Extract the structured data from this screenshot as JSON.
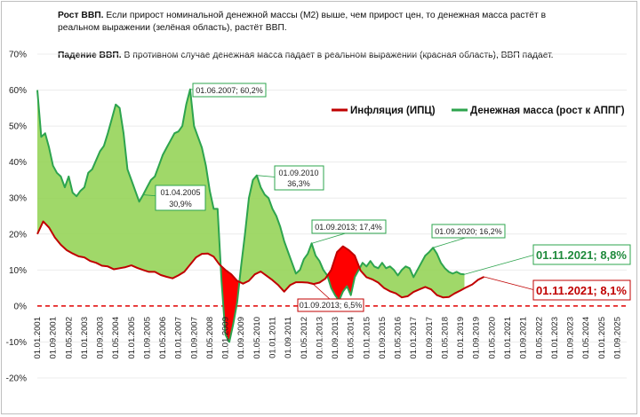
{
  "notes": {
    "growth_title": "Рост ВВП.",
    "growth_text_1": " Если прирост  номинальной денежной массы (М2) выше, чем прирост цен,  то денежная масса растёт в",
    "growth_text_2": "реальном выражении (зелёная область), растёт ВВП.",
    "fall_title": "Падение ВВП.",
    "fall_text": " В противном случае денежная масса падает в реальном выражении (красная область), ВВП падает."
  },
  "chart_data": {
    "type": "area",
    "ylim": [
      -20,
      70
    ],
    "y_ticks": [
      "70%",
      "60%",
      "50%",
      "40%",
      "30%",
      "20%",
      "10%",
      "0%",
      "-10%",
      "-20%"
    ],
    "x_ticks": [
      "01.01.2001",
      "01.09.2001",
      "01.05.2002",
      "01.01.2003",
      "01.09.2003",
      "01.05.2004",
      "01.01.2005",
      "01.09.2005",
      "01.05.2006",
      "01.01.2007",
      "01.09.2007",
      "01.05.2008",
      "01.01.2009",
      "01.09.2009",
      "01.05.2010",
      "01.01.2011",
      "01.09.2011",
      "01.05.2012",
      "01.01.2013",
      "01.09.2013",
      "01.05.2014",
      "01.01.2015",
      "01.09.2015",
      "01.05.2016",
      "01.01.2017",
      "01.09.2017",
      "01.05.2018",
      "01.01.2019",
      "01.09.2019",
      "01.05.2020",
      "01.01.2021",
      "01.09.2021",
      "01.05.2022",
      "01.01.2023",
      "01.09.2023",
      "01.05.2024",
      "01.01.2025",
      "01.09.2025"
    ],
    "series": [
      {
        "name": "Инфляция (ИПЦ)",
        "color": "#c00000",
        "points": [
          [
            0,
            20
          ],
          [
            3,
            23.5
          ],
          [
            6,
            21.8
          ],
          [
            9,
            19
          ],
          [
            12,
            17
          ],
          [
            15,
            15.5
          ],
          [
            18,
            14.6
          ],
          [
            21,
            13.8
          ],
          [
            24,
            13.5
          ],
          [
            27,
            12.5
          ],
          [
            30,
            12
          ],
          [
            33,
            11.2
          ],
          [
            36,
            11
          ],
          [
            39,
            10.2
          ],
          [
            42,
            10.5
          ],
          [
            45,
            10.8
          ],
          [
            48,
            11.3
          ],
          [
            51,
            10.6
          ],
          [
            54,
            10
          ],
          [
            57,
            9.5
          ],
          [
            60,
            9.5
          ],
          [
            63,
            8.6
          ],
          [
            66,
            8.1
          ],
          [
            69,
            7.7
          ],
          [
            72,
            8.5
          ],
          [
            75,
            9.5
          ],
          [
            78,
            11.5
          ],
          [
            81,
            13.5
          ],
          [
            84,
            14.5
          ],
          [
            87,
            14.6
          ],
          [
            90,
            13.7
          ],
          [
            93,
            11.5
          ],
          [
            96,
            10
          ],
          [
            99,
            8.8
          ],
          [
            102,
            7
          ],
          [
            105,
            6.2
          ],
          [
            108,
            7
          ],
          [
            111,
            8.8
          ],
          [
            114,
            9.6
          ],
          [
            117,
            8.4
          ],
          [
            120,
            7.2
          ],
          [
            123,
            5.8
          ],
          [
            126,
            4
          ],
          [
            129,
            5.8
          ],
          [
            132,
            6.6
          ],
          [
            135,
            6.6
          ],
          [
            138,
            6.5
          ],
          [
            141,
            6.1
          ],
          [
            144,
            6.5
          ],
          [
            147,
            7.6
          ],
          [
            150,
            10
          ],
          [
            153,
            15
          ],
          [
            156,
            16.6
          ],
          [
            159,
            15.5
          ],
          [
            162,
            14
          ],
          [
            165,
            9.8
          ],
          [
            168,
            8
          ],
          [
            171,
            7.4
          ],
          [
            174,
            6.5
          ],
          [
            177,
            5
          ],
          [
            180,
            4.1
          ],
          [
            183,
            3.5
          ],
          [
            186,
            2.4
          ],
          [
            189,
            2.7
          ],
          [
            192,
            3.9
          ],
          [
            195,
            4.6
          ],
          [
            198,
            5.3
          ],
          [
            201,
            4.6
          ],
          [
            204,
            3
          ],
          [
            207,
            2.4
          ],
          [
            210,
            2.5
          ],
          [
            213,
            3.5
          ],
          [
            216,
            4.3
          ],
          [
            219,
            5.2
          ],
          [
            222,
            6
          ],
          [
            225,
            7.3
          ],
          [
            228,
            8.1
          ]
        ]
      },
      {
        "name": "Денежная масса (рост к АППГ)",
        "color": "#2da44e",
        "points": [
          [
            0,
            60
          ],
          [
            2,
            47
          ],
          [
            4,
            48
          ],
          [
            6,
            44
          ],
          [
            8,
            39
          ],
          [
            10,
            37
          ],
          [
            12,
            36
          ],
          [
            14,
            33
          ],
          [
            16,
            36
          ],
          [
            18,
            31.5
          ],
          [
            20,
            30.5
          ],
          [
            22,
            32
          ],
          [
            24,
            33
          ],
          [
            26,
            37
          ],
          [
            28,
            38
          ],
          [
            30,
            40.5
          ],
          [
            32,
            43
          ],
          [
            34,
            44.5
          ],
          [
            36,
            48
          ],
          [
            38,
            52
          ],
          [
            40,
            56
          ],
          [
            42,
            55
          ],
          [
            44,
            48
          ],
          [
            46,
            38
          ],
          [
            48,
            35
          ],
          [
            50,
            32
          ],
          [
            52,
            29
          ],
          [
            54,
            30.9
          ],
          [
            56,
            33
          ],
          [
            58,
            35
          ],
          [
            60,
            36
          ],
          [
            62,
            39
          ],
          [
            64,
            42
          ],
          [
            66,
            44
          ],
          [
            68,
            46
          ],
          [
            70,
            48
          ],
          [
            72,
            48.5
          ],
          [
            74,
            50
          ],
          [
            76,
            56
          ],
          [
            78,
            60.2
          ],
          [
            80,
            50
          ],
          [
            82,
            47
          ],
          [
            84,
            44
          ],
          [
            86,
            39
          ],
          [
            88,
            32
          ],
          [
            90,
            27
          ],
          [
            92,
            27
          ],
          [
            94,
            7
          ],
          [
            96,
            -8
          ],
          [
            98,
            -10
          ],
          [
            100,
            -5
          ],
          [
            102,
            1
          ],
          [
            104,
            11
          ],
          [
            106,
            20
          ],
          [
            108,
            30
          ],
          [
            110,
            35
          ],
          [
            112,
            36.3
          ],
          [
            114,
            33
          ],
          [
            116,
            31
          ],
          [
            118,
            30
          ],
          [
            120,
            27
          ],
          [
            122,
            25
          ],
          [
            124,
            22
          ],
          [
            126,
            18
          ],
          [
            128,
            15
          ],
          [
            130,
            12
          ],
          [
            132,
            9
          ],
          [
            134,
            10
          ],
          [
            136,
            13
          ],
          [
            138,
            14.5
          ],
          [
            140,
            17.4
          ],
          [
            142,
            14
          ],
          [
            144,
            12.5
          ],
          [
            146,
            10
          ],
          [
            148,
            8.5
          ],
          [
            150,
            5
          ],
          [
            152,
            3
          ],
          [
            154,
            1.5
          ],
          [
            156,
            4
          ],
          [
            158,
            5.5
          ],
          [
            160,
            3
          ],
          [
            162,
            8
          ],
          [
            164,
            10
          ],
          [
            166,
            12
          ],
          [
            168,
            11
          ],
          [
            170,
            12.5
          ],
          [
            172,
            11
          ],
          [
            174,
            10.5
          ],
          [
            176,
            12
          ],
          [
            178,
            10.5
          ],
          [
            180,
            11
          ],
          [
            182,
            10
          ],
          [
            184,
            8.5
          ],
          [
            186,
            10
          ],
          [
            188,
            11
          ],
          [
            190,
            10.5
          ],
          [
            192,
            8
          ],
          [
            194,
            10
          ],
          [
            196,
            12
          ],
          [
            198,
            14
          ],
          [
            200,
            15
          ],
          [
            202,
            16.2
          ],
          [
            204,
            14.5
          ],
          [
            206,
            12
          ],
          [
            208,
            10.5
          ],
          [
            210,
            9.5
          ],
          [
            212,
            9
          ],
          [
            214,
            9.5
          ],
          [
            216,
            8.9
          ],
          [
            218,
            8.8
          ]
        ]
      }
    ],
    "annotations": {
      "m2_2005": [
        "01.04.2005",
        "30,9%"
      ],
      "m2_2007": "01.06.2007; 60,2%",
      "m2_2010": [
        "01.09.2010",
        "36,3%"
      ],
      "m2_2013": "01.09.2013; 17,4%",
      "cpi_2013": "01.09.2013; 6,5%",
      "m2_2020": "01.09.2020; 16,2%",
      "m2_2021": "01.11.2021; 8,8%",
      "cpi_2021": "01.11.2021; 8,1%"
    }
  }
}
